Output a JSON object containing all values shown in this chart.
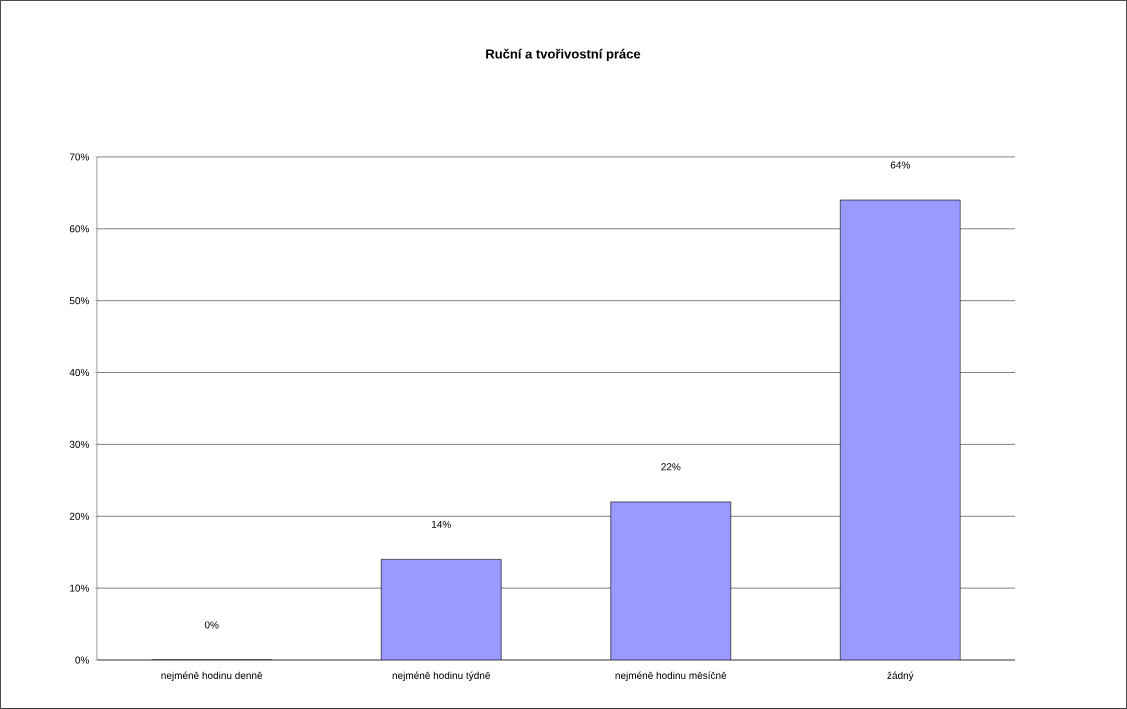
{
  "chart_data": {
    "type": "bar",
    "title": "Ruční a tvořivostní práce",
    "categories": [
      "nejméně hodinu denně",
      "nejméně hodinu týdně",
      "nejméně hodinu měsíčně",
      "žádný"
    ],
    "values": [
      0,
      14,
      22,
      64
    ],
    "color": "#9999ff",
    "value_labels": [
      "0%",
      "14%",
      "22%",
      "64%"
    ],
    "ylim": [
      0,
      70
    ],
    "yticks": [
      {
        "value": 0,
        "label": "0%"
      },
      {
        "value": 10,
        "label": "10%"
      },
      {
        "value": 20,
        "label": "20%"
      },
      {
        "value": 30,
        "label": "30%"
      },
      {
        "value": 40,
        "label": "40%"
      },
      {
        "value": 50,
        "label": "50%"
      },
      {
        "value": 60,
        "label": "60%"
      },
      {
        "value": 70,
        "label": "70%"
      }
    ],
    "grid": "y"
  }
}
